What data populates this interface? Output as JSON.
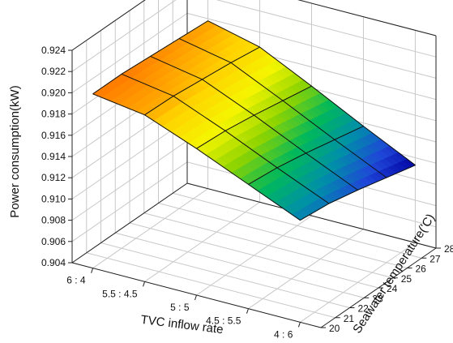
{
  "chart_data": {
    "type": "surface3d",
    "zlabel": "Power consumption(kW)",
    "xlabel": "TVC inflow rate",
    "ylabel": "Seawater temperature(°C)",
    "ylabel_display": "Seawater temperature('C)",
    "x_categories": [
      "6 : 4",
      "5.5 : 4.5",
      "5 : 5",
      "4.5 : 5.5",
      "4 : 6"
    ],
    "y_ticks": [
      "20",
      "21",
      "22",
      "23",
      "24",
      "25",
      "26",
      "27",
      "28"
    ],
    "z_ticks": [
      "0.904",
      "0.906",
      "0.908",
      "0.910",
      "0.912",
      "0.914",
      "0.916",
      "0.918",
      "0.920",
      "0.922",
      "0.924"
    ],
    "x_range": [
      -0.4,
      4.4
    ],
    "y_range": [
      20,
      28
    ],
    "z_range": [
      0.904,
      0.924
    ],
    "surface_y": [
      20,
      22,
      24,
      26,
      28
    ],
    "surface_z": [
      [
        0.9204,
        0.9204,
        0.9202,
        0.92,
        0.9198
      ],
      [
        0.9197,
        0.9196,
        0.9193,
        0.919,
        0.9186
      ],
      [
        0.9178,
        0.9176,
        0.9172,
        0.9167,
        0.9162
      ],
      [
        0.9157,
        0.9154,
        0.9149,
        0.9143,
        0.9137
      ],
      [
        0.9136,
        0.9133,
        0.9127,
        0.912,
        0.9113
      ]
    ],
    "colormap": [
      "#ff7a00",
      "#ffd200",
      "#f5f500",
      "#8fd400",
      "#00b85c",
      "#0090a8",
      "#1f46d8",
      "#0000a0"
    ],
    "grid": true
  }
}
